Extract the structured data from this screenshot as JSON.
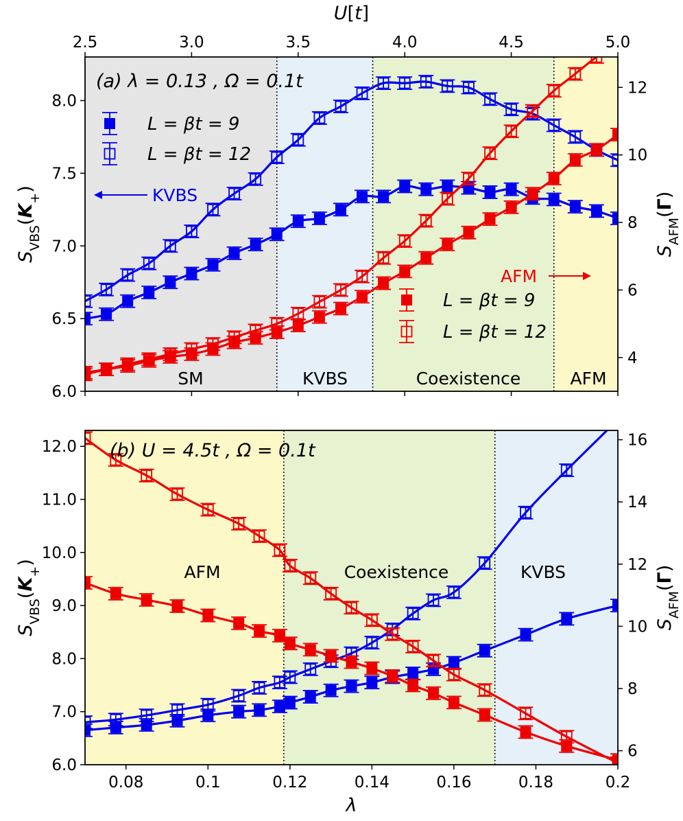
{
  "chart_data": [
    {
      "id": "a",
      "type": "line",
      "header": "(a)  λ = 0.13 , Ω = 0.1t",
      "xlabel": "",
      "x2label": "U[t]",
      "ylabel": "S_VBS(K+)",
      "y2label": "S_AFM(Γ)",
      "xlim": [
        2.5,
        5.0
      ],
      "ylim": [
        6.0,
        8.3
      ],
      "y2lim": [
        3.0,
        12.9
      ],
      "xticks": [
        "2.5",
        "3.0",
        "3.5",
        "4.0",
        "4.5",
        "5.0"
      ],
      "yticks": [
        "6.0",
        "6.5",
        "7.0",
        "7.5",
        "8.0"
      ],
      "y2ticks": [
        "4",
        "6",
        "8",
        "10",
        "12"
      ],
      "regions": [
        {
          "label": "SM",
          "from": 2.5,
          "to": 3.4,
          "color": "#e5e5e5"
        },
        {
          "label": "KVBS",
          "from": 3.4,
          "to": 3.85,
          "color": "#e6f0f8"
        },
        {
          "label": "Coexistence",
          "from": 3.85,
          "to": 4.7,
          "color": "#e6f2d0"
        },
        {
          "label": "AFM",
          "from": 4.7,
          "to": 5.0,
          "color": "#fcf8c8"
        }
      ],
      "annotations": [
        {
          "text": "KVBS",
          "color": "#0000ee",
          "arrow": "left"
        },
        {
          "text": "AFM",
          "color": "#ee0000",
          "arrow": "right"
        }
      ],
      "legends": [
        {
          "group": "vbs",
          "entries": [
            "L = βt = 9",
            "L = βt = 12"
          ]
        },
        {
          "group": "afm",
          "entries": [
            "L = βt = 9",
            "L = βt = 12"
          ]
        }
      ],
      "series": [
        {
          "name": "L = βt = 9",
          "group": "vbs",
          "axis": "left",
          "color": "#0000ee",
          "marker": "filled",
          "x": [
            2.5,
            2.6,
            2.7,
            2.8,
            2.9,
            3.0,
            3.1,
            3.2,
            3.3,
            3.4,
            3.5,
            3.6,
            3.7,
            3.8,
            3.9,
            4.0,
            4.1,
            4.2,
            4.3,
            4.4,
            4.5,
            4.6,
            4.7,
            4.8,
            4.9,
            5.0
          ],
          "y": [
            6.5,
            6.53,
            6.62,
            6.68,
            6.75,
            6.81,
            6.87,
            6.95,
            7.01,
            7.08,
            7.17,
            7.19,
            7.25,
            7.34,
            7.34,
            7.41,
            7.39,
            7.41,
            7.4,
            7.37,
            7.39,
            7.33,
            7.32,
            7.27,
            7.24,
            7.19
          ]
        },
        {
          "name": "L = βt = 12",
          "group": "vbs",
          "axis": "left",
          "color": "#0000ee",
          "marker": "open",
          "x": [
            2.5,
            2.6,
            2.7,
            2.8,
            2.9,
            3.0,
            3.1,
            3.2,
            3.3,
            3.4,
            3.5,
            3.6,
            3.7,
            3.8,
            3.9,
            4.0,
            4.1,
            4.2,
            4.3,
            4.4,
            4.5,
            4.6,
            4.7,
            4.8,
            4.9,
            5.0
          ],
          "y": [
            6.62,
            6.7,
            6.8,
            6.88,
            7.0,
            7.1,
            7.25,
            7.36,
            7.46,
            7.61,
            7.73,
            7.88,
            7.96,
            8.05,
            8.12,
            8.12,
            8.13,
            8.1,
            8.09,
            8.01,
            7.94,
            7.91,
            7.83,
            7.75,
            7.66,
            7.59
          ]
        },
        {
          "name": "L = βt = 9",
          "group": "afm",
          "axis": "right",
          "color": "#ee0000",
          "marker": "filled",
          "x": [
            2.5,
            2.6,
            2.7,
            2.8,
            2.9,
            3.0,
            3.1,
            3.2,
            3.3,
            3.4,
            3.5,
            3.6,
            3.7,
            3.8,
            3.9,
            4.0,
            4.1,
            4.2,
            4.3,
            4.4,
            4.5,
            4.6,
            4.7,
            4.8,
            4.9,
            5.0
          ],
          "y": [
            3.55,
            3.65,
            3.75,
            3.9,
            4.02,
            4.1,
            4.25,
            4.45,
            4.58,
            4.75,
            4.95,
            5.2,
            5.45,
            5.8,
            6.2,
            6.55,
            6.95,
            7.35,
            7.7,
            8.1,
            8.45,
            8.85,
            9.3,
            9.85,
            10.15,
            10.6
          ]
        },
        {
          "name": "L = βt = 12",
          "group": "afm",
          "axis": "right",
          "color": "#ee0000",
          "marker": "open",
          "x": [
            2.5,
            2.6,
            2.7,
            2.8,
            2.9,
            3.0,
            3.1,
            3.2,
            3.3,
            3.4,
            3.5,
            3.6,
            3.7,
            3.8,
            3.9,
            4.0,
            4.1,
            4.2,
            4.3,
            4.4,
            4.5,
            4.6,
            4.7,
            4.8,
            4.9,
            5.0
          ],
          "y": [
            3.5,
            3.65,
            3.8,
            3.95,
            4.1,
            4.25,
            4.4,
            4.6,
            4.8,
            5.0,
            5.3,
            5.65,
            6.0,
            6.4,
            6.95,
            7.45,
            8.05,
            8.7,
            9.3,
            10.05,
            10.7,
            11.3,
            11.9,
            12.4,
            12.9,
            13.3
          ]
        }
      ]
    },
    {
      "id": "b",
      "type": "line",
      "header": "(b)  U = 4.5t , Ω = 0.1t",
      "xlabel": "λ",
      "ylabel": "S_VBS(K+)",
      "y2label": "S_AFM(Γ)",
      "xlim": [
        0.07,
        0.2
      ],
      "ylim": [
        6.0,
        12.3
      ],
      "y2lim": [
        5.55,
        16.3
      ],
      "xticks": [
        "0.08",
        "0.1",
        "0.12",
        "0.14",
        "0.16",
        "0.18",
        "0.2"
      ],
      "yticks": [
        "6.0",
        "7.0",
        "8.0",
        "9.0",
        "10.0",
        "11.0",
        "12.0"
      ],
      "y2ticks": [
        "6",
        "8",
        "10",
        "12",
        "14",
        "16"
      ],
      "regions": [
        {
          "label": "AFM",
          "from": 0.07,
          "to": 0.1185,
          "color": "#fcf8c8"
        },
        {
          "label": "Coexistence",
          "from": 0.1185,
          "to": 0.17,
          "color": "#e6f2d0"
        },
        {
          "label": "KVBS",
          "from": 0.17,
          "to": 0.2,
          "color": "#e6f0f8"
        }
      ],
      "series": [
        {
          "name": "L = βt = 9",
          "group": "vbs",
          "axis": "left",
          "color": "#0000ee",
          "marker": "filled",
          "x": [
            0.07,
            0.0775,
            0.085,
            0.0925,
            0.1,
            0.1075,
            0.1125,
            0.1175,
            0.12,
            0.125,
            0.13,
            0.135,
            0.14,
            0.145,
            0.15,
            0.155,
            0.16,
            0.1675,
            0.1775,
            0.1875,
            0.2
          ],
          "y": [
            6.65,
            6.7,
            6.75,
            6.83,
            6.93,
            7.0,
            7.03,
            7.1,
            7.17,
            7.28,
            7.4,
            7.48,
            7.55,
            7.65,
            7.72,
            7.8,
            7.92,
            8.15,
            8.45,
            8.75,
            9.0
          ]
        },
        {
          "name": "L = βt = 12",
          "group": "vbs",
          "axis": "left",
          "color": "#0000ee",
          "marker": "open",
          "x": [
            0.07,
            0.0775,
            0.085,
            0.0925,
            0.1,
            0.1075,
            0.1125,
            0.1175,
            0.12,
            0.125,
            0.13,
            0.135,
            0.14,
            0.145,
            0.15,
            0.155,
            0.16,
            0.1675,
            0.1775,
            0.1875,
            0.2
          ],
          "y": [
            6.8,
            6.85,
            6.93,
            7.03,
            7.13,
            7.3,
            7.45,
            7.55,
            7.65,
            7.8,
            7.95,
            8.1,
            8.3,
            8.55,
            8.85,
            9.1,
            9.25,
            9.8,
            10.75,
            11.55,
            12.5
          ]
        },
        {
          "name": "L = βt = 9",
          "group": "afm",
          "axis": "right",
          "color": "#ee0000",
          "marker": "filled",
          "x": [
            0.07,
            0.0775,
            0.085,
            0.0925,
            0.1,
            0.1075,
            0.1125,
            0.1175,
            0.12,
            0.125,
            0.13,
            0.135,
            0.14,
            0.145,
            0.15,
            0.155,
            0.16,
            0.1675,
            0.1775,
            0.1875,
            0.2
          ],
          "y": [
            11.4,
            11.05,
            10.85,
            10.65,
            10.35,
            10.1,
            9.85,
            9.7,
            9.45,
            9.25,
            9.05,
            8.85,
            8.65,
            8.4,
            8.1,
            7.85,
            7.55,
            7.15,
            6.6,
            6.15,
            5.7
          ]
        },
        {
          "name": "L = βt = 12",
          "group": "afm",
          "axis": "right",
          "color": "#ee0000",
          "marker": "open",
          "x": [
            0.07,
            0.0775,
            0.085,
            0.0925,
            0.1,
            0.1075,
            0.1125,
            0.1175,
            0.12,
            0.125,
            0.13,
            0.135,
            0.14,
            0.145,
            0.15,
            0.155,
            0.16,
            0.1675,
            0.1775,
            0.1875,
            0.2
          ],
          "y": [
            16.05,
            15.35,
            14.85,
            14.25,
            13.75,
            13.3,
            12.9,
            12.45,
            11.95,
            11.55,
            11.05,
            10.6,
            10.2,
            9.75,
            9.35,
            8.9,
            8.45,
            7.95,
            7.2,
            6.45,
            5.6
          ]
        }
      ]
    }
  ]
}
